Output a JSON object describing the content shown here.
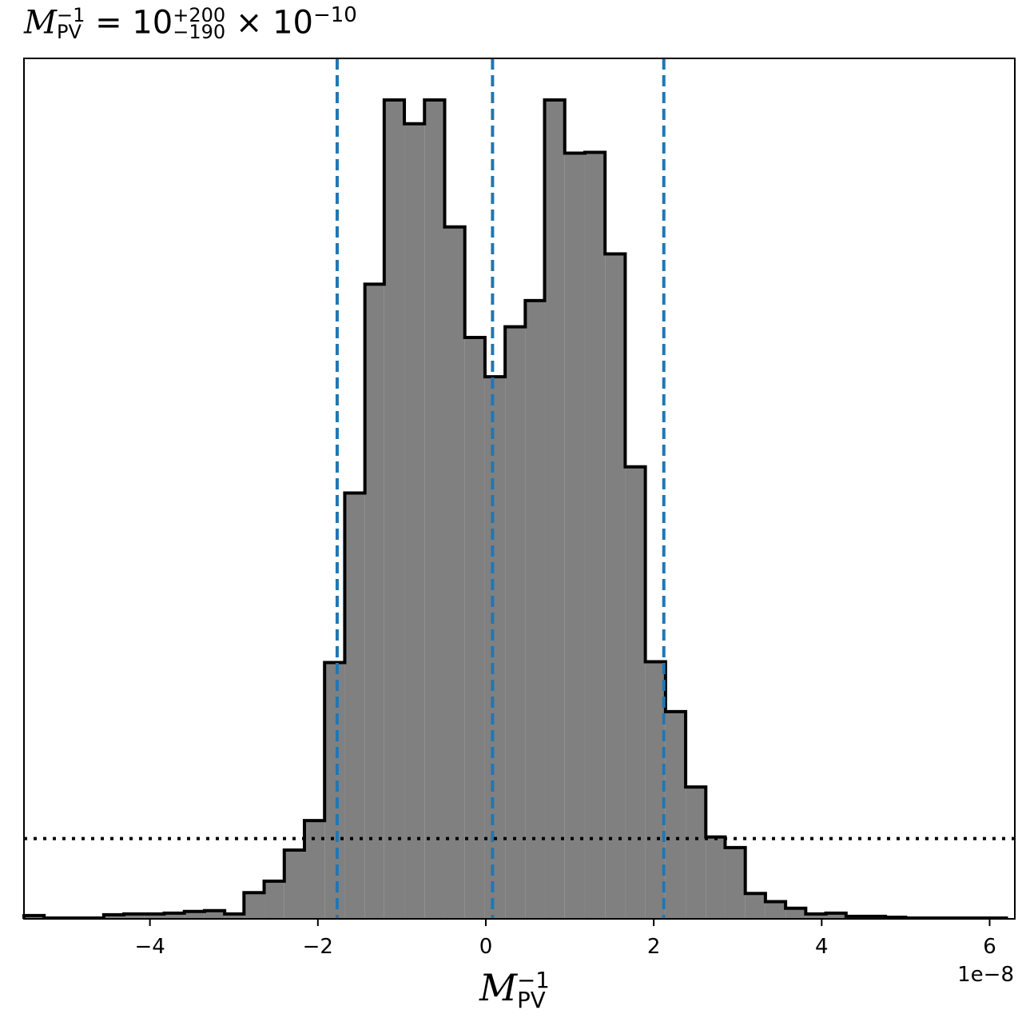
{
  "chart_data": {
    "type": "histogram",
    "title": {
      "symbol": "M",
      "symbol_sub": "PV",
      "symbol_sup": "−1",
      "equals": " = ",
      "mantissa": "10",
      "err_plus": "+200",
      "err_minus": "−190",
      "times": " × 10",
      "exponent": "−10"
    },
    "xlabel": {
      "symbol": "M",
      "sub": "PV",
      "sup": "−1"
    },
    "x_offset_label": "1e−8",
    "xlim": [
      -5.5e-08,
      6.3e-08
    ],
    "ylim": [
      0,
      1.0
    ],
    "x_ticks": [
      {
        "value": -4e-08,
        "label": "−4"
      },
      {
        "value": -2e-08,
        "label": "−2"
      },
      {
        "value": 0,
        "label": "0"
      },
      {
        "value": 2e-08,
        "label": "2"
      },
      {
        "value": 4e-08,
        "label": "4"
      },
      {
        "value": 6e-08,
        "label": "6"
      }
    ],
    "bin_edges": [
      -5.5e-08,
      -5.26e-08,
      -5.02e-08,
      -4.78e-08,
      -4.55e-08,
      -4.31e-08,
      -4.07e-08,
      -3.83e-08,
      -3.59e-08,
      -3.35e-08,
      -3.11e-08,
      -2.88e-08,
      -2.64e-08,
      -2.4e-08,
      -2.16e-08,
      -1.92e-08,
      -1.68e-08,
      -1.44e-08,
      -1.21e-08,
      -9.7e-09,
      -7.3e-09,
      -4.9e-09,
      -2.5e-09,
      -1e-10,
      2.3e-09,
      4.7e-09,
      7e-09,
      9.4e-09,
      1.18e-08,
      1.42e-08,
      1.66e-08,
      1.9e-08,
      2.14e-08,
      2.38e-08,
      2.62e-08,
      2.85e-08,
      3.09e-08,
      3.33e-08,
      3.57e-08,
      3.81e-08,
      4.05e-08,
      4.29e-08,
      4.52e-08,
      4.76e-08,
      5e-08,
      5.24e-08,
      5.48e-08,
      5.72e-08,
      5.96e-08,
      6.2e-08
    ],
    "counts": [
      0.004,
      0.001,
      0.001,
      0.001,
      0.005,
      0.006,
      0.006,
      0.007,
      0.009,
      0.01,
      0.006,
      0.032,
      0.046,
      0.084,
      0.12,
      0.313,
      0.52,
      0.775,
      1.0,
      0.971,
      1.0,
      0.845,
      0.71,
      0.662,
      0.723,
      0.755,
      1.0,
      0.935,
      0.936,
      0.812,
      0.552,
      0.314,
      0.253,
      0.161,
      0.1,
      0.087,
      0.031,
      0.021,
      0.013,
      0.006,
      0.007,
      0.003,
      0.003,
      0.002,
      0.001,
      0.001,
      0.001,
      0.001,
      0.001
    ],
    "quantile_lines": [
      -1.77e-08,
      8e-10,
      2.12e-08
    ],
    "reference_level": 0.098,
    "colors": {
      "fill": "#808080",
      "edge": "#000000",
      "quantile": "#1f77b4",
      "reference": "#000000"
    }
  }
}
